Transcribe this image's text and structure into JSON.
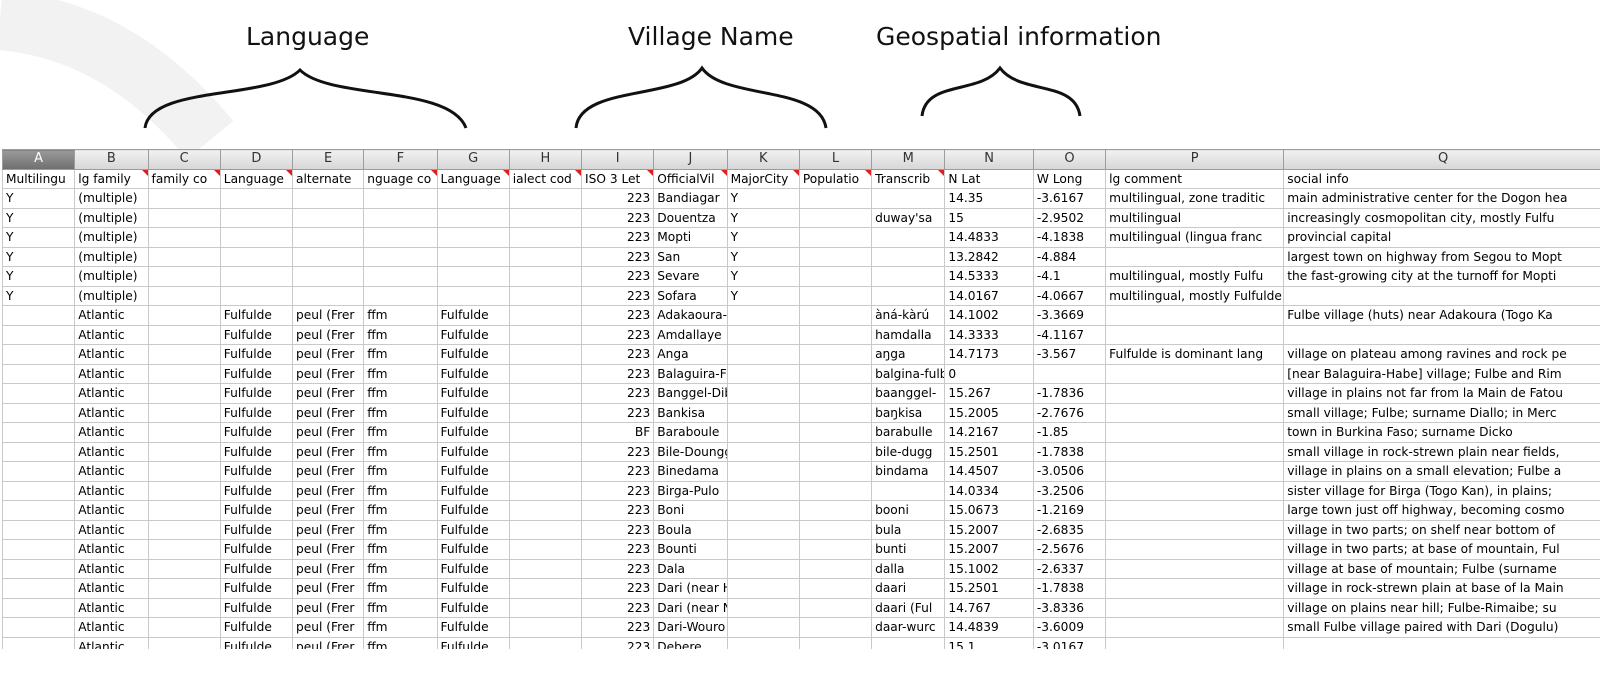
{
  "annotations": {
    "language": "Language",
    "village_name": "Village Name",
    "geospatial": "Geospatial information"
  },
  "sheet": {
    "columns": [
      "A",
      "B",
      "C",
      "D",
      "E",
      "F",
      "G",
      "H",
      "I",
      "J",
      "K",
      "L",
      "M",
      "N",
      "O",
      "P",
      "Q"
    ],
    "selected_column": "A",
    "header_row": [
      "Multilingu",
      "lg family",
      "family co",
      "Language",
      "alternate",
      "nguage co",
      "Language",
      "ialect cod",
      "ISO 3 Let",
      "OfficialVil",
      "MajorCity",
      "Populatio",
      "Transcrib",
      "N Lat",
      "W Long",
      "lg comment",
      "social info"
    ],
    "comment_columns": [
      "B",
      "C",
      "D",
      "F",
      "G",
      "H",
      "I",
      "J",
      "K",
      "L",
      "M"
    ],
    "rows": [
      [
        "Y",
        "(multiple)",
        "",
        "",
        "",
        "",
        "",
        "",
        "223",
        "Bandiagar",
        "Y",
        "",
        "",
        "14.35",
        "-3.6167",
        "multilingual, zone traditic",
        "main administrative center for the Dogon hea"
      ],
      [
        "Y",
        "(multiple)",
        "",
        "",
        "",
        "",
        "",
        "",
        "223",
        "Douentza",
        "Y",
        "",
        "duway'sa",
        "15",
        "-2.9502",
        "multilingual",
        "increasingly cosmopolitan city, mostly Fulfu"
      ],
      [
        "Y",
        "(multiple)",
        "",
        "",
        "",
        "",
        "",
        "",
        "223",
        "Mopti",
        "Y",
        "",
        "",
        "14.4833",
        "-4.1838",
        "multilingual (lingua franc",
        "provincial capital"
      ],
      [
        "Y",
        "(multiple)",
        "",
        "",
        "",
        "",
        "",
        "",
        "223",
        "San",
        "Y",
        "",
        "",
        "13.2842",
        "-4.884",
        "",
        "largest town on highway from Segou to Mopt"
      ],
      [
        "Y",
        "(multiple)",
        "",
        "",
        "",
        "",
        "",
        "",
        "223",
        "Sevare",
        "Y",
        "",
        "",
        "14.5333",
        "-4.1",
        "multilingual, mostly Fulfu",
        "the fast-growing city at the turnoff for Mopti"
      ],
      [
        "Y",
        "(multiple)",
        "",
        "",
        "",
        "",
        "",
        "",
        "223",
        "Sofara",
        "Y",
        "",
        "",
        "14.0167",
        "-4.0667",
        "multilingual, mostly Fulfulde and Bambara, also Tomo-Kan",
        ""
      ],
      [
        "",
        "Atlantic",
        "",
        "Fulfulde",
        "peul (Frer",
        "ffm",
        "Fulfulde",
        "",
        "223",
        "Adakaoura-Fulbe",
        "",
        "",
        "àná-kàrú",
        "14.1002",
        "-3.3669",
        "",
        "Fulbe village (huts) near Adakoura (Togo Ka"
      ],
      [
        "",
        "Atlantic",
        "",
        "Fulfulde",
        "peul (Frer",
        "ffm",
        "Fulfulde",
        "",
        "223",
        "Amdallaye",
        "",
        "",
        "hamdalla",
        "14.3333",
        "-4.1167",
        "",
        ""
      ],
      [
        "",
        "Atlantic",
        "",
        "Fulfulde",
        "peul (Frer",
        "ffm",
        "Fulfulde",
        "",
        "223",
        "Anga",
        "",
        "",
        "aŋga",
        "14.7173",
        "-3.567",
        "Fulfulde is dominant lang",
        "village on plateau among ravines and rock pe"
      ],
      [
        "",
        "Atlantic",
        "",
        "Fulfulde",
        "peul (Frer",
        "ffm",
        "Fulfulde",
        "",
        "223",
        "Balaguira-Foulbe",
        "",
        "",
        "balgina-fulbe (Fulfulde",
        "0",
        "",
        "",
        "[near Balaguira-Habe] village; Fulbe and Rim"
      ],
      [
        "",
        "Atlantic",
        "",
        "Fulfulde",
        "peul (Frer",
        "ffm",
        "Fulfulde",
        "",
        "223",
        "Banggel-Diboule",
        "",
        "",
        "baanggel-",
        "15.267",
        "-1.7836",
        "",
        "village in plains not far from la Main de Fatou"
      ],
      [
        "",
        "Atlantic",
        "",
        "Fulfulde",
        "peul (Frer",
        "ffm",
        "Fulfulde",
        "",
        "223",
        "Bankisa",
        "",
        "",
        "baŋkisa",
        "15.2005",
        "-2.7676",
        "",
        "small village; Fulbe; surname Diallo; in Merc"
      ],
      [
        "",
        "Atlantic",
        "",
        "Fulfulde",
        "peul (Frer",
        "ffm",
        "Fulfulde",
        "",
        "BF",
        "Baraboule",
        "",
        "",
        "barabulle",
        "14.2167",
        "-1.85",
        "",
        "town in Burkina Faso; surname Dicko"
      ],
      [
        "",
        "Atlantic",
        "",
        "Fulfulde",
        "peul (Frer",
        "ffm",
        "Fulfulde",
        "",
        "223",
        "Bile-Dounggouwal",
        "",
        "",
        "bile-dugg",
        "15.2501",
        "-1.7838",
        "",
        "small village in rock-strewn plain near fields,"
      ],
      [
        "",
        "Atlantic",
        "",
        "Fulfulde",
        "peul (Frer",
        "ffm",
        "Fulfulde",
        "",
        "223",
        "Binedama",
        "",
        "",
        "bindama",
        "14.4507",
        "-3.0506",
        "",
        "village in plains on a small elevation; Fulbe a"
      ],
      [
        "",
        "Atlantic",
        "",
        "Fulfulde",
        "peul (Frer",
        "ffm",
        "Fulfulde",
        "",
        "223",
        "Birga-Pulo",
        "",
        "",
        "",
        "14.0334",
        "-3.2506",
        "",
        "sister village for Birga (Togo Kan), in plains;"
      ],
      [
        "",
        "Atlantic",
        "",
        "Fulfulde",
        "peul (Frer",
        "ffm",
        "Fulfulde",
        "",
        "223",
        "Boni",
        "",
        "",
        "booni",
        "15.0673",
        "-1.2169",
        "",
        "large town just off highway, becoming cosmo"
      ],
      [
        "",
        "Atlantic",
        "",
        "Fulfulde",
        "peul (Frer",
        "ffm",
        "Fulfulde",
        "",
        "223",
        "Boula",
        "",
        "",
        "bula",
        "15.2007",
        "-2.6835",
        "",
        "village in two parts; on shelf near bottom of"
      ],
      [
        "",
        "Atlantic",
        "",
        "Fulfulde",
        "peul (Frer",
        "ffm",
        "Fulfulde",
        "",
        "223",
        "Bounti",
        "",
        "",
        "bunti",
        "15.2007",
        "-2.5676",
        "",
        "village in two parts; at base of mountain, Ful"
      ],
      [
        "",
        "Atlantic",
        "",
        "Fulfulde",
        "peul (Frer",
        "ffm",
        "Fulfulde",
        "",
        "223",
        "Dala",
        "",
        "",
        "dalla",
        "15.1002",
        "-2.6337",
        "",
        "village at base of mountain; Fulbe (surname"
      ],
      [
        "",
        "Atlantic",
        "",
        "Fulfulde",
        "peul (Frer",
        "ffm",
        "Fulfulde",
        "",
        "223",
        "Dari (near Hombori)",
        "",
        "",
        "daari",
        "15.2501",
        "-1.7838",
        "",
        "village in rock-strewn plain at base of la Main"
      ],
      [
        "",
        "Atlantic",
        "",
        "Fulfulde",
        "peul (Frer",
        "ffm",
        "Fulfulde",
        "",
        "223",
        "Dari (near Nienagou)",
        "",
        "",
        "daari (Ful",
        "14.767",
        "-3.8336",
        "",
        "village on plains near hill; Fulbe-Rimaibe; su"
      ],
      [
        "",
        "Atlantic",
        "",
        "Fulfulde",
        "peul (Frer",
        "ffm",
        "Fulfulde",
        "",
        "223",
        "Dari-Wouro",
        "",
        "",
        "daar-wurc",
        "14.4839",
        "-3.6009",
        "",
        "small Fulbe village paired with Dari (Dogulu)"
      ],
      [
        "",
        "Atlantic",
        "",
        "Fulfulde",
        "peul (Frer",
        "ffm",
        "Fulfulde",
        "",
        "223",
        "Debere",
        "",
        "",
        "",
        "15.1",
        "-3.0167",
        "",
        ""
      ]
    ]
  }
}
